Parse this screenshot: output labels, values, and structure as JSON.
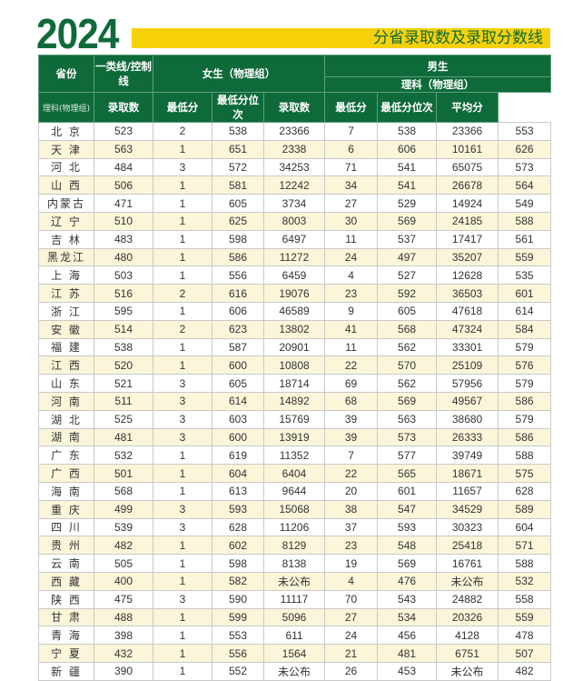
{
  "title": {
    "year": "2024",
    "subtitle": "分省录取数及录取分数线"
  },
  "colors": {
    "green": "#0f6a3a",
    "yellow": "#f6d10a",
    "alt_row": "#fbf5d9"
  },
  "header": {
    "province": "省份",
    "line": "一类线/控制线",
    "line_sub": "理科(物理组)",
    "female": "女生（物理组）",
    "male": "男生",
    "male_sub": "理科（物理组）",
    "count": "录取数",
    "min": "最低分",
    "rank": "最低分位次",
    "avg": "平均分"
  },
  "rows": [
    [
      "北 京",
      "523",
      "2",
      "538",
      "23366",
      "7",
      "538",
      "23366",
      "553"
    ],
    [
      "天 津",
      "563",
      "1",
      "651",
      "2338",
      "6",
      "606",
      "10161",
      "626"
    ],
    [
      "河 北",
      "484",
      "3",
      "572",
      "34253",
      "71",
      "541",
      "65075",
      "573"
    ],
    [
      "山 西",
      "506",
      "1",
      "581",
      "12242",
      "34",
      "541",
      "26678",
      "564"
    ],
    [
      "内蒙古",
      "471",
      "1",
      "605",
      "3734",
      "27",
      "529",
      "14924",
      "549"
    ],
    [
      "辽 宁",
      "510",
      "1",
      "625",
      "8003",
      "30",
      "569",
      "24185",
      "588"
    ],
    [
      "吉 林",
      "483",
      "1",
      "598",
      "6497",
      "11",
      "537",
      "17417",
      "561"
    ],
    [
      "黑龙江",
      "480",
      "1",
      "586",
      "11272",
      "24",
      "497",
      "35207",
      "559"
    ],
    [
      "上 海",
      "503",
      "1",
      "556",
      "6459",
      "4",
      "527",
      "12628",
      "535"
    ],
    [
      "江 苏",
      "516",
      "2",
      "616",
      "19076",
      "23",
      "592",
      "36503",
      "601"
    ],
    [
      "浙 江",
      "595",
      "1",
      "606",
      "46589",
      "9",
      "605",
      "47618",
      "614"
    ],
    [
      "安 徽",
      "514",
      "2",
      "623",
      "13802",
      "41",
      "568",
      "47324",
      "584"
    ],
    [
      "福 建",
      "538",
      "1",
      "587",
      "20901",
      "11",
      "562",
      "33301",
      "579"
    ],
    [
      "江 西",
      "520",
      "1",
      "600",
      "10808",
      "22",
      "570",
      "25109",
      "576"
    ],
    [
      "山 东",
      "521",
      "3",
      "605",
      "18714",
      "69",
      "562",
      "57956",
      "579"
    ],
    [
      "河 南",
      "511",
      "3",
      "614",
      "14892",
      "68",
      "569",
      "49567",
      "586"
    ],
    [
      "湖 北",
      "525",
      "3",
      "603",
      "15769",
      "39",
      "563",
      "38680",
      "579"
    ],
    [
      "湖 南",
      "481",
      "3",
      "600",
      "13919",
      "39",
      "573",
      "26333",
      "586"
    ],
    [
      "广 东",
      "532",
      "1",
      "619",
      "11352",
      "7",
      "577",
      "39749",
      "588"
    ],
    [
      "广 西",
      "501",
      "1",
      "604",
      "6404",
      "22",
      "565",
      "18671",
      "575"
    ],
    [
      "海 南",
      "568",
      "1",
      "613",
      "9644",
      "20",
      "601",
      "11657",
      "628"
    ],
    [
      "重 庆",
      "499",
      "3",
      "593",
      "15068",
      "38",
      "547",
      "34529",
      "589"
    ],
    [
      "四 川",
      "539",
      "3",
      "628",
      "11206",
      "37",
      "593",
      "30323",
      "604"
    ],
    [
      "贵 州",
      "482",
      "1",
      "602",
      "8129",
      "23",
      "548",
      "25418",
      "571"
    ],
    [
      "云 南",
      "505",
      "1",
      "598",
      "8138",
      "19",
      "569",
      "16761",
      "588"
    ],
    [
      "西 藏",
      "400",
      "1",
      "582",
      "未公布",
      "4",
      "476",
      "未公布",
      "532"
    ],
    [
      "陕 西",
      "475",
      "3",
      "590",
      "11117",
      "70",
      "543",
      "24882",
      "558"
    ],
    [
      "甘 肃",
      "488",
      "1",
      "599",
      "5096",
      "27",
      "534",
      "20326",
      "559"
    ],
    [
      "青 海",
      "398",
      "1",
      "553",
      "611",
      "24",
      "456",
      "4128",
      "478"
    ],
    [
      "宁 夏",
      "432",
      "1",
      "556",
      "1564",
      "21",
      "481",
      "6751",
      "507"
    ],
    [
      "新 疆",
      "390",
      "1",
      "552",
      "未公布",
      "26",
      "453",
      "未公布",
      "482"
    ]
  ]
}
